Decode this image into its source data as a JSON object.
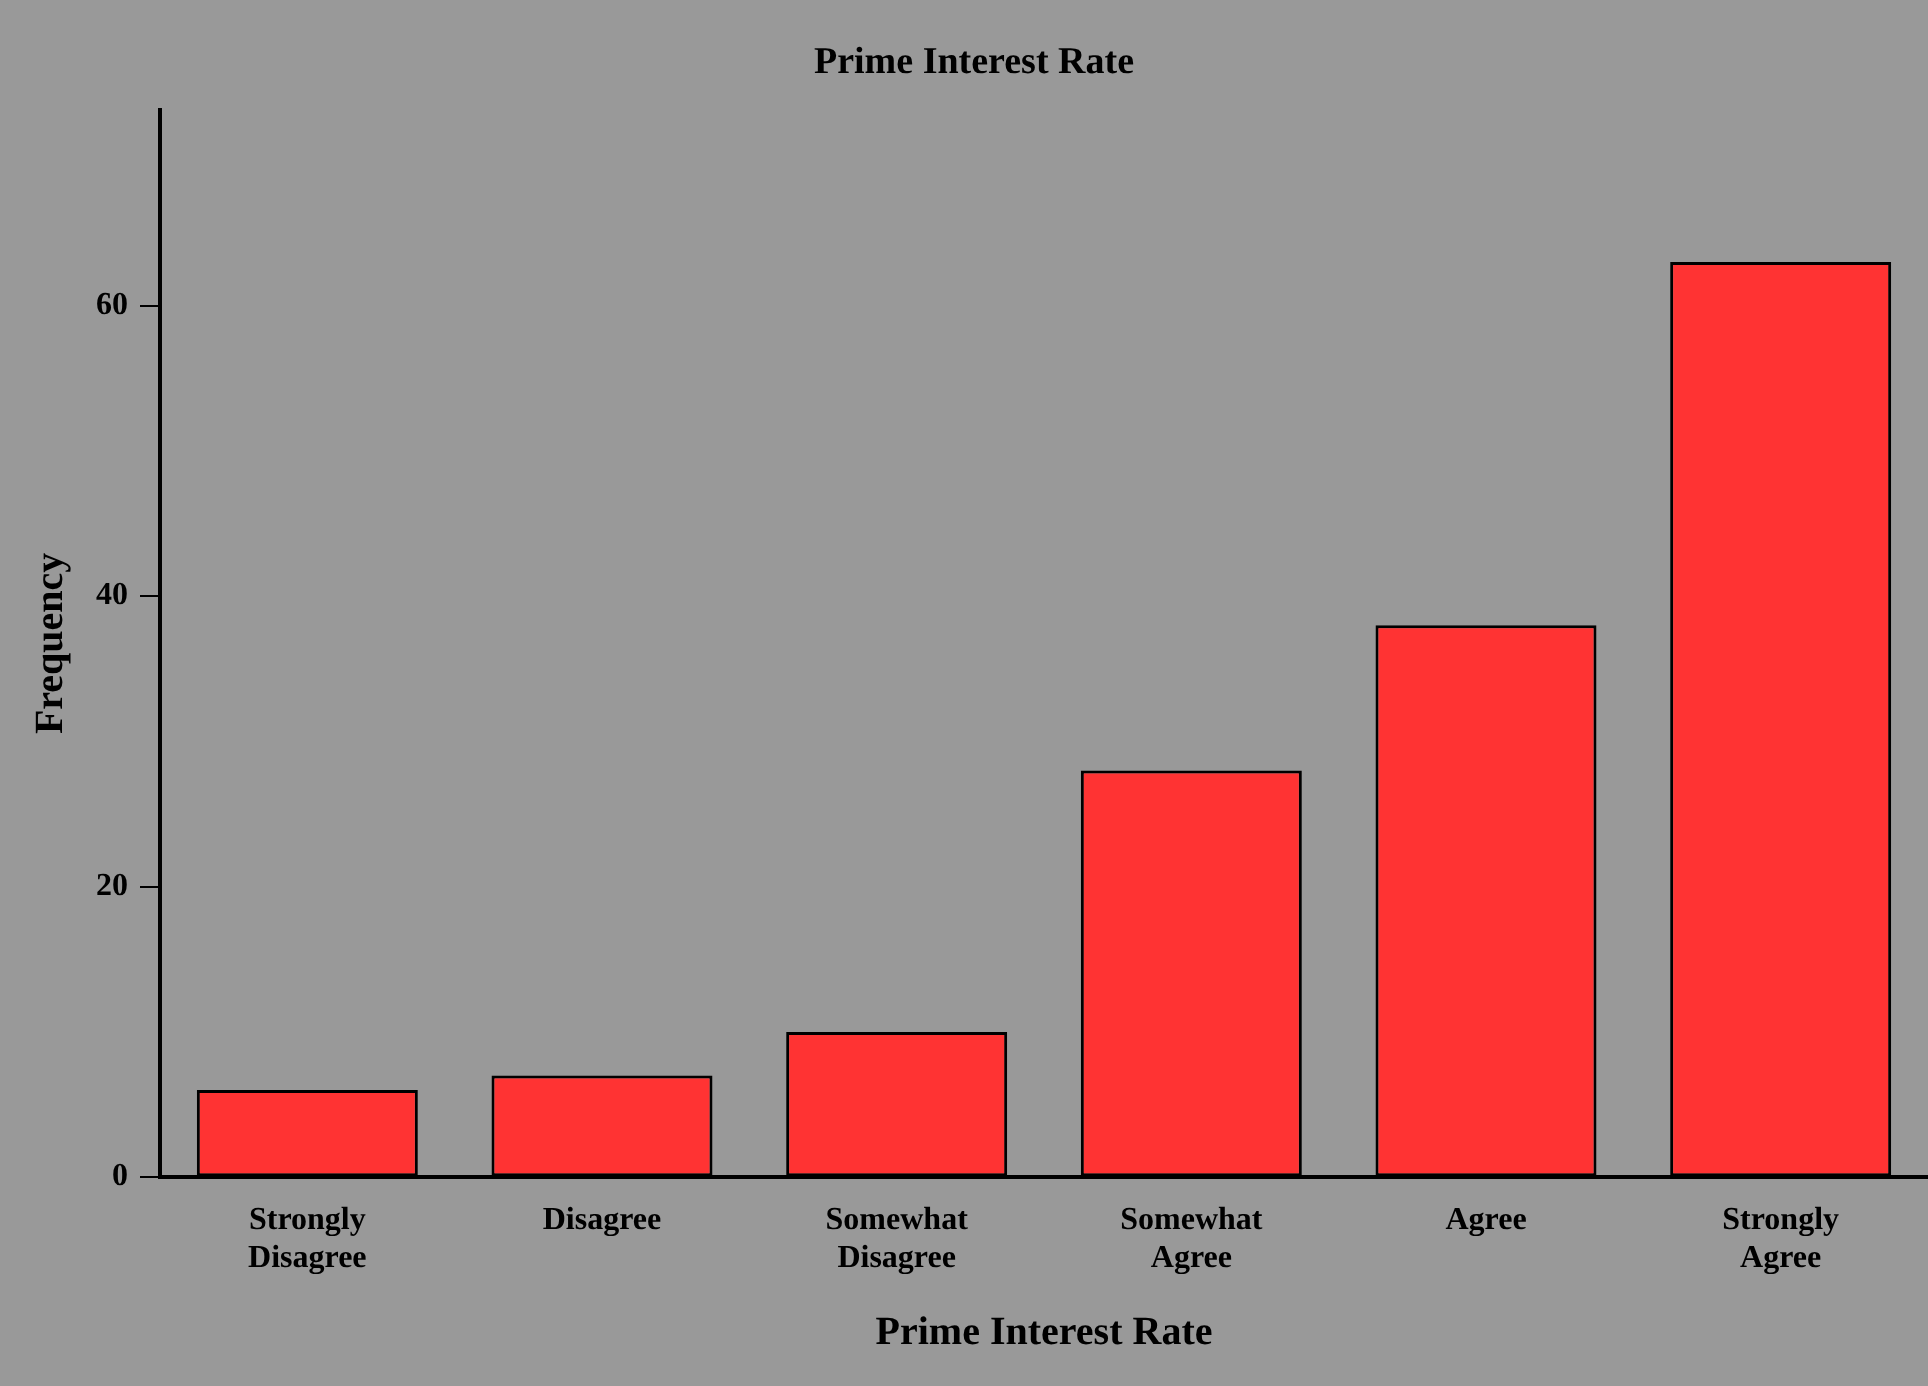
{
  "chart_data": {
    "type": "bar",
    "title": "Prime Interest Rate",
    "xlabel": "Prime Interest Rate",
    "ylabel": "Frequency",
    "categories": [
      "Strongly Disagree",
      "Disagree",
      "Somewhat Disagree",
      "Somewhat Agree",
      "Agree",
      "Strongly Agree"
    ],
    "values": [
      6,
      7,
      10,
      28,
      38,
      63
    ],
    "color": "#ff3333",
    "ylim": [
      0,
      73.5
    ],
    "yticks": [
      0,
      20,
      40,
      60
    ],
    "grid": false,
    "legend": false
  }
}
